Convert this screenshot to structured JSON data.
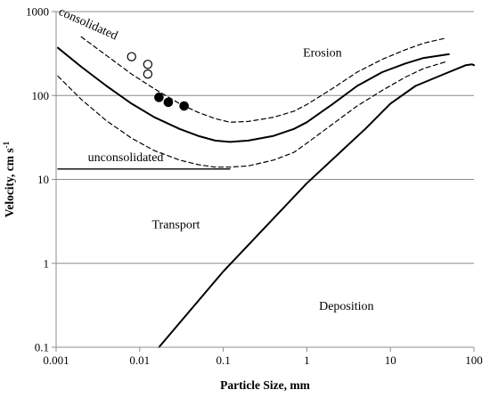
{
  "chart_data": {
    "type": "line",
    "title": "",
    "xlabel": "Particle Size, mm",
    "ylabel_main": "Velocity, cm s",
    "ylabel_sup": "-1",
    "x_scale": "log",
    "y_scale": "log",
    "xlim": [
      0.001,
      100
    ],
    "ylim": [
      0.1,
      1000
    ],
    "x_ticks": [
      {
        "value": 0.001,
        "label": "0.001"
      },
      {
        "value": 0.01,
        "label": "0.01"
      },
      {
        "value": 0.1,
        "label": "0.1"
      },
      {
        "value": 1,
        "label": "1"
      },
      {
        "value": 10,
        "label": "10"
      },
      {
        "value": 100,
        "label": "100"
      }
    ],
    "y_ticks": [
      {
        "value": 0.1,
        "label": "0.1"
      },
      {
        "value": 1,
        "label": "1"
      },
      {
        "value": 10,
        "label": "10"
      },
      {
        "value": 100,
        "label": "100"
      },
      {
        "value": 1000,
        "label": "1000"
      }
    ],
    "grid": "horizontal",
    "region_labels": [
      {
        "text": "Erosion",
        "x": 0.9,
        "y": 290
      },
      {
        "text": "Transport",
        "x": 0.014,
        "y": 2.6
      },
      {
        "text": "Deposition",
        "x": 1.4,
        "y": 0.28
      }
    ],
    "curve_labels": [
      {
        "text": "consolidated",
        "x": 0.00105,
        "y": 930,
        "rotate": 24
      },
      {
        "text": "unconsolidated",
        "x": 0.0024,
        "y": 16.5,
        "rotate": 0
      }
    ],
    "series": [
      {
        "style": "solid",
        "x": [
          0.00105,
          0.002,
          0.004,
          0.008,
          0.015,
          0.03,
          0.05,
          0.08,
          0.12,
          0.2,
          0.4,
          0.7,
          1.0,
          2,
          4,
          8,
          15,
          25,
          50
        ],
        "y": [
          370,
          220,
          130,
          80,
          55,
          40,
          33,
          29,
          28,
          29,
          33,
          40,
          48,
          78,
          130,
          190,
          240,
          280,
          310
        ]
      },
      {
        "style": "dashed",
        "x": [
          0.002,
          0.004,
          0.008,
          0.015,
          0.03,
          0.05,
          0.08,
          0.12,
          0.2,
          0.4,
          0.7,
          1.0,
          2,
          4,
          8,
          15,
          25,
          45
        ],
        "y": [
          500,
          300,
          180,
          120,
          80,
          63,
          53,
          48,
          49,
          55,
          65,
          78,
          120,
          190,
          270,
          350,
          420,
          480
        ]
      },
      {
        "style": "dashed",
        "x": [
          0.00105,
          0.002,
          0.004,
          0.008,
          0.015,
          0.03,
          0.05,
          0.08,
          0.12,
          0.2,
          0.4,
          0.7,
          1.0,
          2,
          4,
          8,
          15,
          25,
          45
        ],
        "y": [
          170,
          90,
          50,
          31,
          22,
          17,
          15,
          14,
          14,
          14.5,
          17,
          21,
          27,
          45,
          75,
          115,
          165,
          210,
          250
        ]
      },
      {
        "style": "solid",
        "x": [
          0.00105,
          0.12
        ],
        "y": [
          13.3,
          13.3
        ]
      },
      {
        "style": "solid",
        "x": [
          0.017,
          0.1,
          1,
          5,
          10,
          20,
          50,
          80,
          95,
          100
        ],
        "y": [
          0.1,
          0.8,
          9,
          40,
          80,
          130,
          190,
          230,
          235,
          230
        ]
      }
    ],
    "points_open": [
      {
        "x": 0.008,
        "y": 290
      },
      {
        "x": 0.0125,
        "y": 235
      },
      {
        "x": 0.0125,
        "y": 180
      }
    ],
    "points_filled": [
      {
        "x": 0.017,
        "y": 95
      },
      {
        "x": 0.022,
        "y": 83
      },
      {
        "x": 0.034,
        "y": 75
      }
    ]
  }
}
